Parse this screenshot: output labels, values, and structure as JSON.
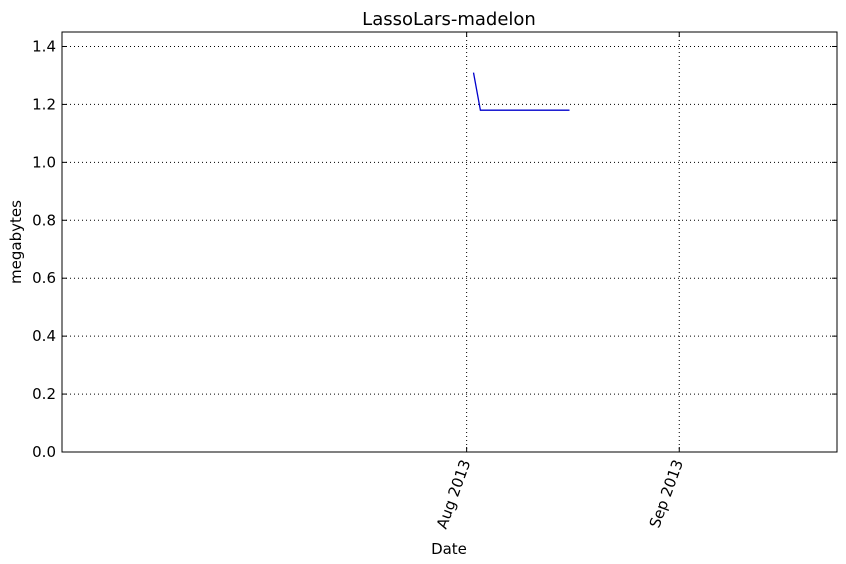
{
  "chart_data": {
    "type": "line",
    "title": "LassoLars-madelon",
    "xlabel": "Date",
    "ylabel": "megabytes",
    "x_axis": {
      "type": "date",
      "range": [
        "2013-06-03",
        "2013-09-24"
      ],
      "ticks": [
        {
          "date": "2013-08-01",
          "label": "Aug 2013"
        },
        {
          "date": "2013-09-01",
          "label": "Sep 2013"
        }
      ]
    },
    "ylim": [
      0.0,
      1.45
    ],
    "yticks": [
      {
        "value": 0.0,
        "label": "0.0"
      },
      {
        "value": 0.2,
        "label": "0.2"
      },
      {
        "value": 0.4,
        "label": "0.4"
      },
      {
        "value": 0.6,
        "label": "0.6"
      },
      {
        "value": 0.8,
        "label": "0.8"
      },
      {
        "value": 1.0,
        "label": "1.0"
      },
      {
        "value": 1.2,
        "label": "1.2"
      },
      {
        "value": 1.4,
        "label": "1.4"
      }
    ],
    "grid": true,
    "series": [
      {
        "color": "#0000cc",
        "points": [
          {
            "x": "2013-08-02",
            "y": 1.31
          },
          {
            "x": "2013-08-03",
            "y": 1.18
          },
          {
            "x": "2013-08-16",
            "y": 1.18
          }
        ]
      }
    ]
  }
}
